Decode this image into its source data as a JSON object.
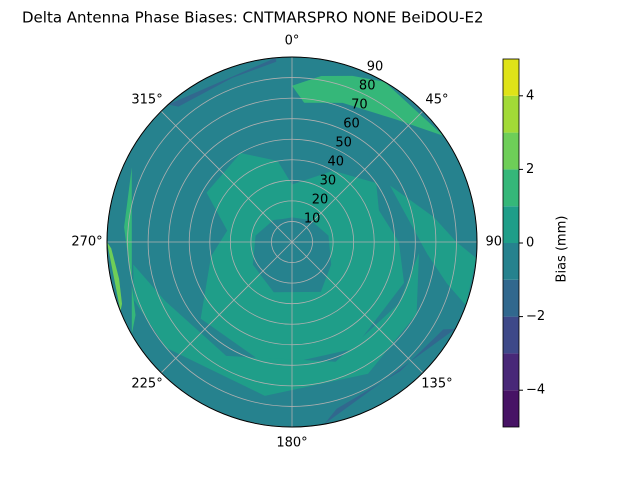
{
  "chart_data": {
    "type": "polar-contour",
    "title": "Delta Antenna Phase Biases: CNTMARSPRO      NONE BeiDOU-E2",
    "thetaticks": [
      {
        "value": 0,
        "label": "0°"
      },
      {
        "value": 45,
        "label": "45°"
      },
      {
        "value": 90,
        "label": "90°"
      },
      {
        "value": 135,
        "label": "135°"
      },
      {
        "value": 180,
        "label": "180°"
      },
      {
        "value": 225,
        "label": "225°"
      },
      {
        "value": 270,
        "label": "270°"
      },
      {
        "value": 315,
        "label": "315°"
      }
    ],
    "rlim": [
      0,
      90
    ],
    "rticks": [
      10,
      20,
      30,
      40,
      50,
      60,
      70,
      80,
      90
    ],
    "grid": true,
    "levels": [
      -5,
      -4,
      -3,
      -2,
      -1,
      0,
      1,
      2,
      3,
      4,
      5
    ],
    "colors": [
      "#471365",
      "#482878",
      "#3e4989",
      "#31688e",
      "#26828e",
      "#1f9e89",
      "#35b779",
      "#6ece58",
      "#a2da37",
      "#dfe318"
    ],
    "colorbar_label": "Bias (mm)",
    "colorbar_lim": [
      -5,
      5
    ],
    "colorbar_ticks": [
      {
        "value": -4,
        "label": "−4"
      },
      {
        "value": -2,
        "label": "−2"
      },
      {
        "value": 0,
        "label": "0"
      },
      {
        "value": 2,
        "label": "2"
      },
      {
        "value": 4,
        "label": "4"
      }
    ]
  }
}
